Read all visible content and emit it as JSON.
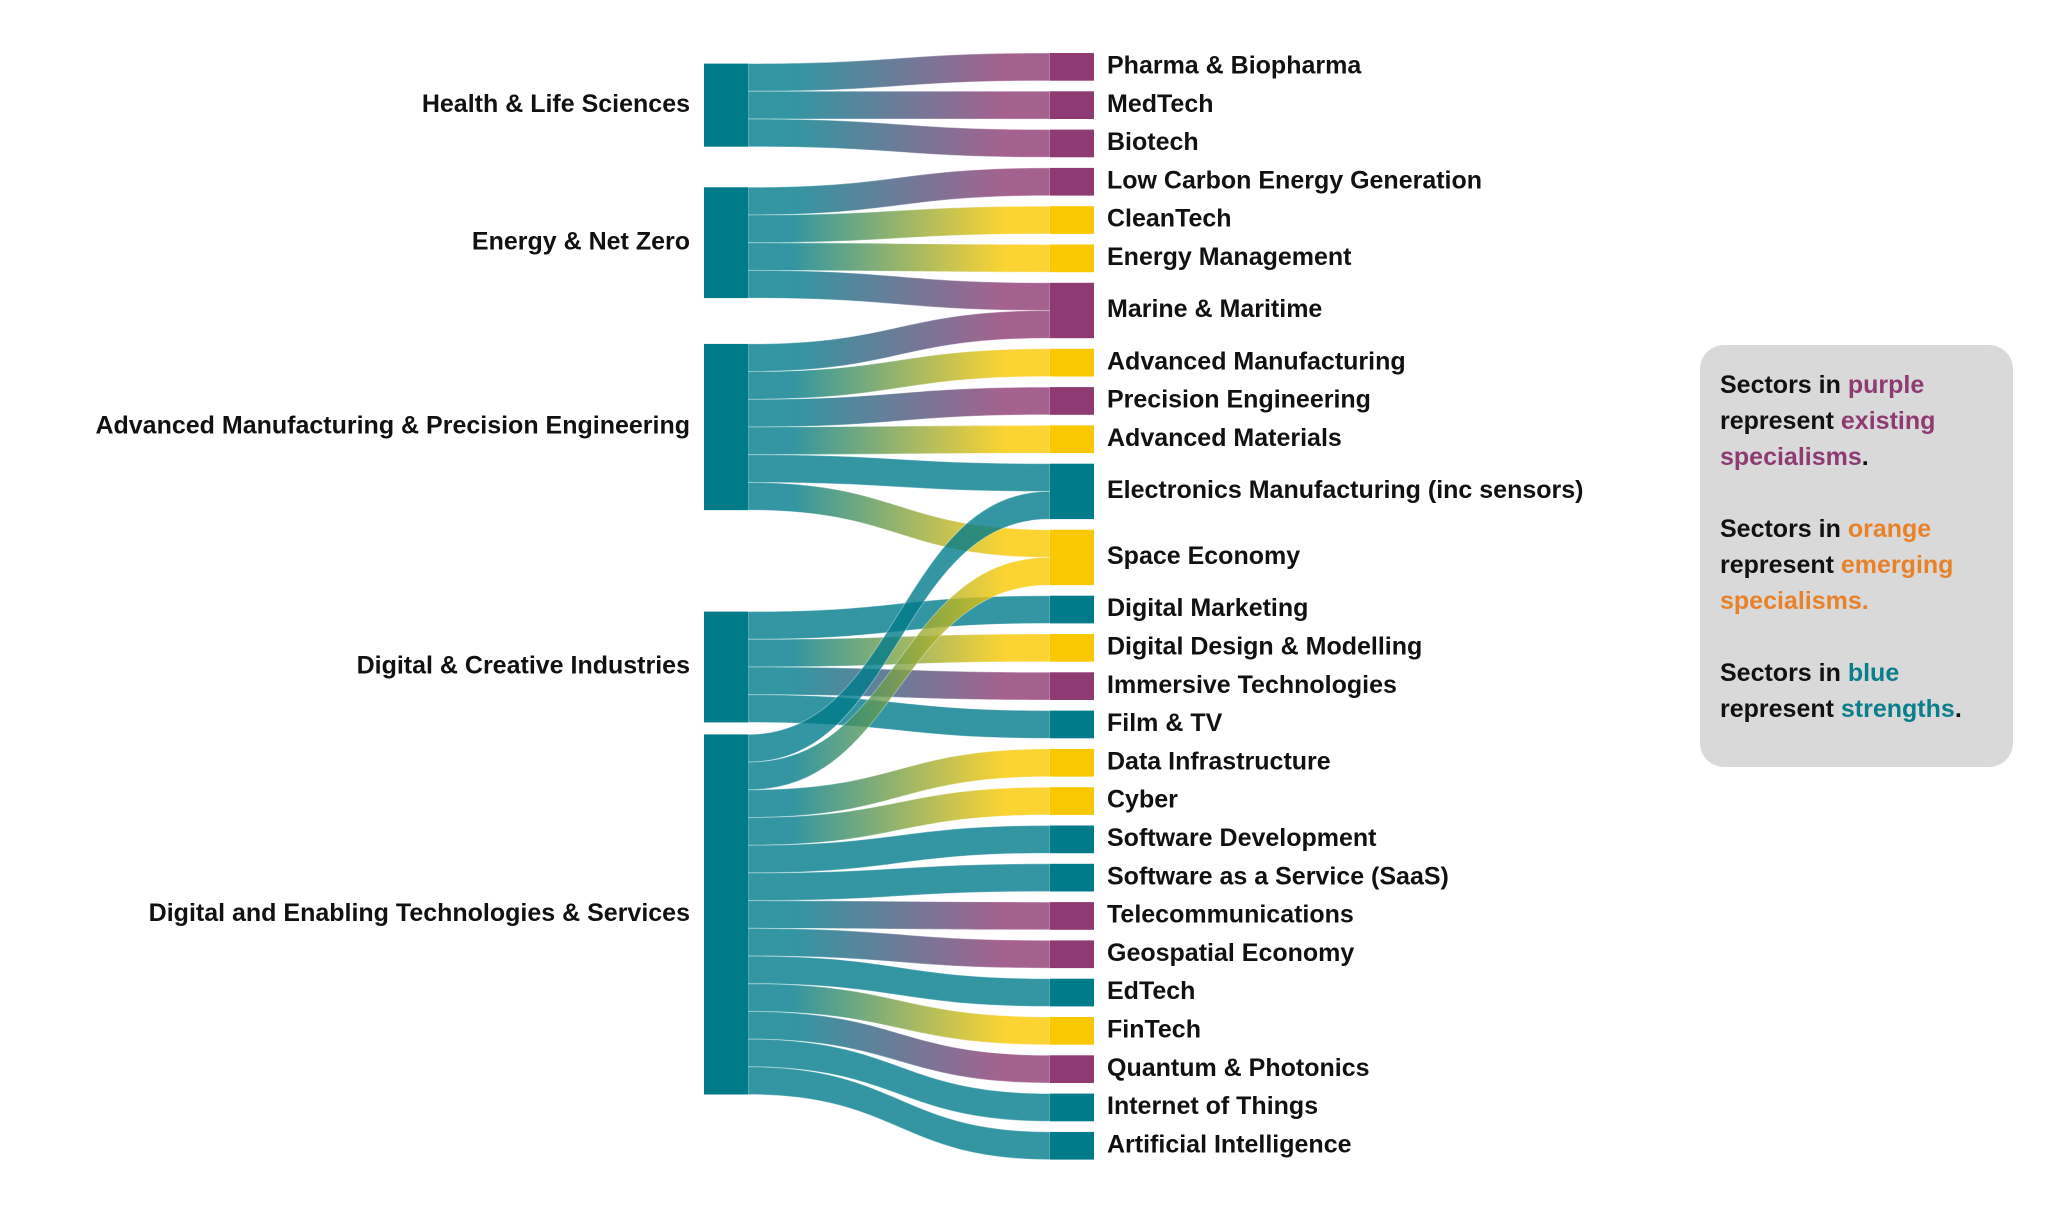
{
  "chart_data": {
    "type": "sankey",
    "sources": [
      {
        "label": "Health & Life Sciences",
        "color": "#007b8a"
      },
      {
        "label": "Energy & Net Zero",
        "color": "#007b8a"
      },
      {
        "label": "Advanced Manufacturing & Precision Engineering",
        "color": "#007b8a"
      },
      {
        "label": "Digital & Creative Industries",
        "color": "#007b8a"
      },
      {
        "label": "Digital and Enabling Technologies & Services",
        "color": "#007b8a"
      }
    ],
    "targets": [
      {
        "label": "Pharma & Biopharma",
        "color": "#8e3a73"
      },
      {
        "label": "MedTech",
        "color": "#8e3a73"
      },
      {
        "label": "Biotech",
        "color": "#8e3a73"
      },
      {
        "label": "Low Carbon Energy Generation",
        "color": "#8e3a73"
      },
      {
        "label": "CleanTech",
        "color": "#fac800"
      },
      {
        "label": "Energy Management",
        "color": "#fac800"
      },
      {
        "label": "Marine & Maritime",
        "color": "#8e3a73"
      },
      {
        "label": "Advanced Manufacturing",
        "color": "#fac800"
      },
      {
        "label": "Precision Engineering",
        "color": "#8e3a73"
      },
      {
        "label": "Advanced Materials",
        "color": "#fac800"
      },
      {
        "label": "Electronics Manufacturing (inc sensors)",
        "color": "#007b8a"
      },
      {
        "label": "Space Economy",
        "color": "#fac800"
      },
      {
        "label": "Digital Marketing",
        "color": "#007b8a"
      },
      {
        "label": "Digital Design & Modelling",
        "color": "#fac800"
      },
      {
        "label": "Immersive Technologies",
        "color": "#8e3a73"
      },
      {
        "label": "Film & TV",
        "color": "#007b8a"
      },
      {
        "label": "Data Infrastructure",
        "color": "#fac800"
      },
      {
        "label": "Cyber",
        "color": "#fac800"
      },
      {
        "label": "Software Development",
        "color": "#007b8a"
      },
      {
        "label": "Software as a Service (SaaS)",
        "color": "#007b8a"
      },
      {
        "label": "Telecommunications",
        "color": "#8e3a73"
      },
      {
        "label": "Geospatial Economy",
        "color": "#8e3a73"
      },
      {
        "label": "EdTech",
        "color": "#007b8a"
      },
      {
        "label": "FinTech",
        "color": "#fac800"
      },
      {
        "label": "Quantum & Photonics",
        "color": "#8e3a73"
      },
      {
        "label": "Internet of Things",
        "color": "#007b8a"
      },
      {
        "label": "Artificial Intelligence",
        "color": "#007b8a"
      }
    ],
    "links": [
      {
        "source": 0,
        "target": 0,
        "value": 1
      },
      {
        "source": 0,
        "target": 1,
        "value": 1
      },
      {
        "source": 0,
        "target": 2,
        "value": 1
      },
      {
        "source": 1,
        "target": 3,
        "value": 1
      },
      {
        "source": 1,
        "target": 4,
        "value": 1
      },
      {
        "source": 1,
        "target": 5,
        "value": 1
      },
      {
        "source": 1,
        "target": 6,
        "value": 1
      },
      {
        "source": 2,
        "target": 6,
        "value": 1
      },
      {
        "source": 2,
        "target": 7,
        "value": 1
      },
      {
        "source": 2,
        "target": 8,
        "value": 1
      },
      {
        "source": 2,
        "target": 9,
        "value": 1
      },
      {
        "source": 2,
        "target": 10,
        "value": 1
      },
      {
        "source": 2,
        "target": 11,
        "value": 1
      },
      {
        "source": 3,
        "target": 12,
        "value": 1
      },
      {
        "source": 3,
        "target": 13,
        "value": 1
      },
      {
        "source": 3,
        "target": 14,
        "value": 1
      },
      {
        "source": 3,
        "target": 15,
        "value": 1
      },
      {
        "source": 4,
        "target": 10,
        "value": 1
      },
      {
        "source": 4,
        "target": 11,
        "value": 1
      },
      {
        "source": 4,
        "target": 16,
        "value": 1
      },
      {
        "source": 4,
        "target": 17,
        "value": 1
      },
      {
        "source": 4,
        "target": 18,
        "value": 1
      },
      {
        "source": 4,
        "target": 19,
        "value": 1
      },
      {
        "source": 4,
        "target": 20,
        "value": 1
      },
      {
        "source": 4,
        "target": 21,
        "value": 1
      },
      {
        "source": 4,
        "target": 22,
        "value": 1
      },
      {
        "source": 4,
        "target": 23,
        "value": 1
      },
      {
        "source": 4,
        "target": 24,
        "value": 1
      },
      {
        "source": 4,
        "target": 25,
        "value": 1
      },
      {
        "source": 4,
        "target": 26,
        "value": 1
      }
    ],
    "legend": [
      {
        "prefix": "Sectors in",
        "word": "purple",
        "middle": "represent",
        "highlight": "existing specialisms",
        "suffix": ".",
        "color": "#8e3a73"
      },
      {
        "prefix": "Sectors in",
        "word": "orange",
        "middle": "represent",
        "highlight": "emerging specialisms.",
        "color": "#e8822a"
      },
      {
        "prefix": "Sectors in",
        "word": "blue",
        "middle": "represent",
        "highlight": "strengths",
        "suffix": ".",
        "color": "#0a7f8c"
      }
    ]
  }
}
